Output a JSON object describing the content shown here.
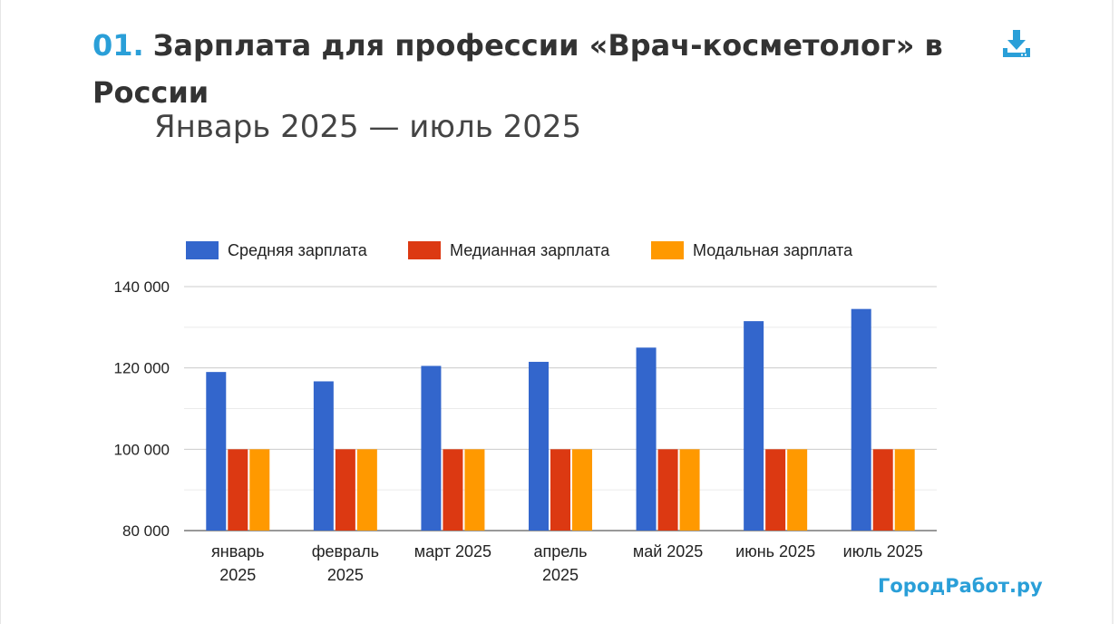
{
  "header": {
    "number": "01.",
    "title": "Зарплата для профессии «Врач-косметолог» в России",
    "subtitle": "Январь 2025 — июль 2025",
    "download_icon": "download-icon"
  },
  "brand": "ГородРабот.ру",
  "colors": {
    "accent": "#2a9fd8",
    "series": [
      "#3366cc",
      "#dc3912",
      "#ff9900"
    ]
  },
  "chart_data": {
    "type": "bar",
    "categories": [
      "январь 2025",
      "февраль 2025",
      "март 2025",
      "апрель 2025",
      "май 2025",
      "июнь 2025",
      "июль 2025"
    ],
    "category_lines": [
      [
        "январь",
        "2025"
      ],
      [
        "февраль",
        "2025"
      ],
      [
        "март 2025"
      ],
      [
        "апрель",
        "2025"
      ],
      [
        "май 2025"
      ],
      [
        "июнь 2025"
      ],
      [
        "июль 2025"
      ]
    ],
    "series": [
      {
        "name": "Средняя зарплата",
        "values": [
          119000,
          116700,
          120500,
          121500,
          125000,
          131500,
          134500
        ]
      },
      {
        "name": "Медианная зарплата",
        "values": [
          100000,
          100000,
          100000,
          100000,
          100000,
          100000,
          100000
        ]
      },
      {
        "name": "Модальная зарплата",
        "values": [
          100000,
          100000,
          100000,
          100000,
          100000,
          100000,
          100000
        ]
      }
    ],
    "ylim": [
      80000,
      140000
    ],
    "yticks": [
      80000,
      100000,
      120000,
      140000
    ],
    "ytick_labels": [
      "80 000",
      "100 000",
      "120 000",
      "140 000"
    ],
    "grid": true,
    "legend_position": "top",
    "xlabel": "",
    "ylabel": ""
  }
}
